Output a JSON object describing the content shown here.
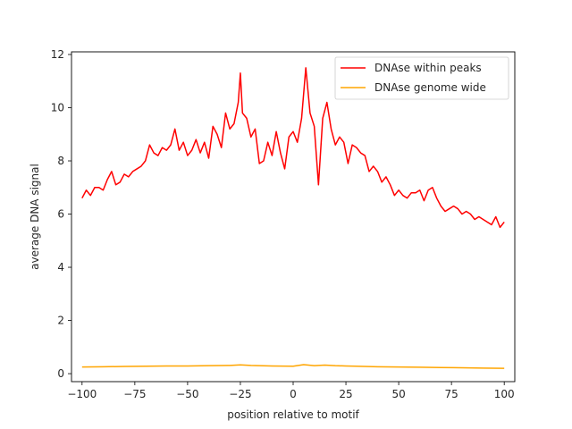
{
  "chart_data": {
    "type": "line",
    "title": "",
    "xlabel": "position relative to motif",
    "ylabel": "average DNA signal",
    "xlim": [
      -105,
      105
    ],
    "ylim": [
      -0.3,
      12.1
    ],
    "xticks": [
      -100,
      -75,
      -50,
      -25,
      0,
      25,
      50,
      75,
      100
    ],
    "yticks": [
      0,
      2,
      4,
      6,
      8,
      10,
      12
    ],
    "xtick_labels": [
      "−100",
      "−75",
      "−50",
      "−25",
      "0",
      "25",
      "50",
      "75",
      "100"
    ],
    "ytick_labels": [
      "0",
      "2",
      "4",
      "6",
      "8",
      "10",
      "12"
    ],
    "grid": false,
    "legend_position": "upper right",
    "series": [
      {
        "name": "DNAse within peaks",
        "color": "#ff0000",
        "x": [
          -100,
          -98,
          -96,
          -94,
          -92,
          -90,
          -88,
          -86,
          -84,
          -82,
          -80,
          -78,
          -76,
          -74,
          -72,
          -70,
          -68,
          -66,
          -64,
          -62,
          -60,
          -58,
          -56,
          -54,
          -52,
          -50,
          -48,
          -46,
          -44,
          -42,
          -40,
          -38,
          -36,
          -34,
          -32,
          -30,
          -28,
          -26,
          -25,
          -24,
          -22,
          -20,
          -18,
          -16,
          -14,
          -12,
          -10,
          -8,
          -6,
          -4,
          -2,
          0,
          2,
          4,
          6,
          8,
          10,
          12,
          14,
          16,
          18,
          20,
          22,
          24,
          26,
          28,
          30,
          32,
          34,
          36,
          38,
          40,
          42,
          44,
          46,
          48,
          50,
          52,
          54,
          56,
          58,
          60,
          62,
          64,
          66,
          68,
          70,
          72,
          74,
          76,
          78,
          80,
          82,
          84,
          86,
          88,
          90,
          92,
          94,
          96,
          98,
          100
        ],
        "y": [
          6.6,
          6.9,
          6.7,
          7.0,
          7.0,
          6.9,
          7.3,
          7.6,
          7.1,
          7.2,
          7.5,
          7.4,
          7.6,
          7.7,
          7.8,
          8.0,
          8.6,
          8.3,
          8.2,
          8.5,
          8.4,
          8.6,
          9.2,
          8.4,
          8.7,
          8.2,
          8.4,
          8.8,
          8.3,
          8.7,
          8.1,
          9.3,
          9.0,
          8.5,
          9.8,
          9.2,
          9.4,
          10.2,
          11.3,
          9.8,
          9.6,
          8.9,
          9.2,
          7.9,
          8.0,
          8.7,
          8.2,
          9.1,
          8.3,
          7.7,
          8.9,
          9.1,
          8.7,
          9.6,
          11.5,
          9.8,
          9.3,
          7.1,
          9.6,
          10.2,
          9.2,
          8.6,
          8.9,
          8.7,
          7.9,
          8.6,
          8.5,
          8.3,
          8.2,
          7.6,
          7.8,
          7.6,
          7.2,
          7.4,
          7.1,
          6.7,
          6.9,
          6.7,
          6.6,
          6.8,
          6.8,
          6.9,
          6.5,
          6.9,
          7.0,
          6.6,
          6.3,
          6.1,
          6.2,
          6.3,
          6.2,
          6.0,
          6.1,
          6.0,
          5.8,
          5.9,
          5.8,
          5.7,
          5.6,
          5.9,
          5.5,
          5.7
        ]
      },
      {
        "name": "DNAse genome wide",
        "color": "#ffa500",
        "x": [
          -100,
          -90,
          -80,
          -70,
          -60,
          -50,
          -40,
          -30,
          -25,
          -20,
          -10,
          0,
          5,
          10,
          15,
          20,
          25,
          30,
          40,
          50,
          60,
          70,
          80,
          90,
          100
        ],
        "y": [
          0.25,
          0.26,
          0.27,
          0.28,
          0.29,
          0.29,
          0.3,
          0.31,
          0.33,
          0.31,
          0.29,
          0.28,
          0.34,
          0.3,
          0.32,
          0.3,
          0.29,
          0.28,
          0.26,
          0.25,
          0.24,
          0.23,
          0.22,
          0.21,
          0.2
        ]
      }
    ]
  }
}
